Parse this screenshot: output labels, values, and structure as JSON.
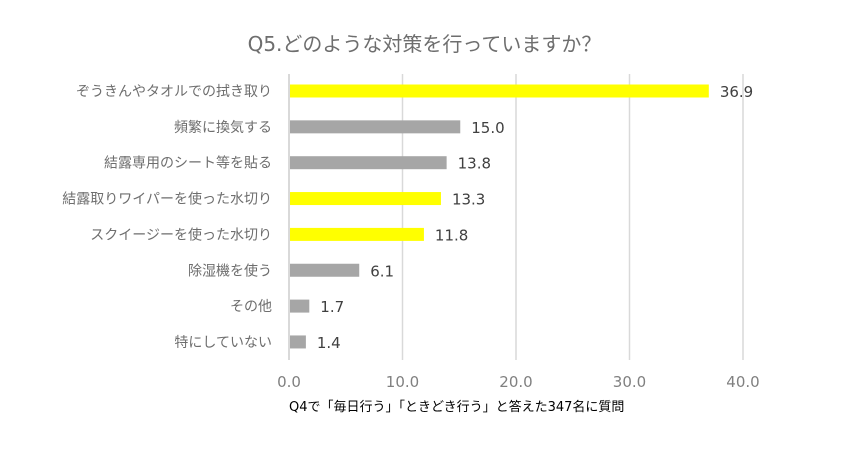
{
  "chart_data": {
    "type": "bar",
    "orientation": "horizontal",
    "title": "Q5.どのような対策を行っていますか？",
    "note": "Q4で「毎日行う」「ときどき行う」と答えた347名に質問",
    "categories": [
      "ぞうきんやタオルでの拭き取り",
      "頻繁に換気する",
      "結露専用のシート等を貼る",
      "結露取りワイパーを使った水切り",
      "スクイージーを使った水切り",
      "除湿機を使う",
      "その他",
      "特にしていない"
    ],
    "values": [
      36.9,
      15.0,
      13.8,
      13.3,
      11.8,
      6.1,
      1.7,
      1.4
    ],
    "value_labels": [
      "36.9",
      "15.0",
      "13.8",
      "13.3",
      "11.8",
      "6.1",
      "1.7",
      "1.4"
    ],
    "highlight": [
      true,
      false,
      false,
      true,
      true,
      false,
      false,
      false
    ],
    "colors": {
      "highlight": "#ffff00",
      "default": "#a6a6a6",
      "grid": "#d9d9d9"
    },
    "xlim": [
      0,
      40
    ],
    "xticks": [
      "0.0",
      "10.0",
      "20.0",
      "30.0",
      "40.0"
    ],
    "grid": true,
    "legend": "none"
  }
}
